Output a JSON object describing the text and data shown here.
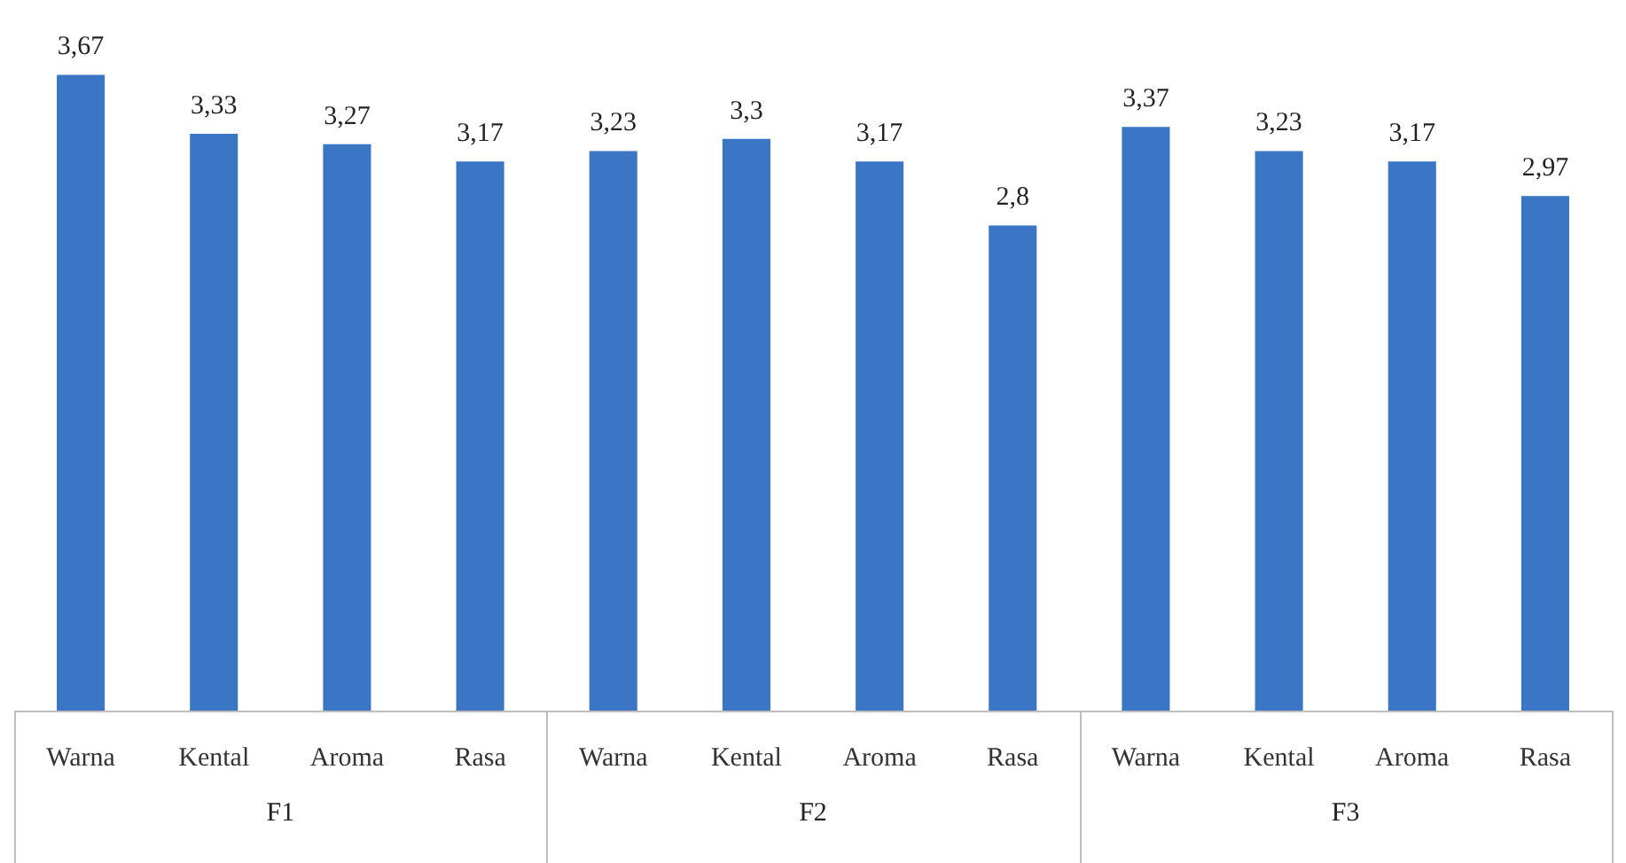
{
  "chart_data": {
    "type": "bar",
    "categories": [
      "Warna",
      "Kental",
      "Aroma",
      "Rasa",
      "Warna",
      "Kental",
      "Aroma",
      "Rasa",
      "Warna",
      "Kental",
      "Aroma",
      "Rasa"
    ],
    "values": [
      3.67,
      3.33,
      3.27,
      3.17,
      3.23,
      3.3,
      3.17,
      2.8,
      3.37,
      3.23,
      3.17,
      2.97
    ],
    "value_labels": [
      "3,67",
      "3,33",
      "3,27",
      "3,17",
      "3,23",
      "3,3",
      "3,17",
      "2,8",
      "3,37",
      "3,23",
      "3,17",
      "2,97"
    ],
    "color": "#3a76c4",
    "annotations": [
      "F1",
      "F2",
      "F3"
    ],
    "tick_labels": "x",
    "grid": false,
    "legend": false
  }
}
